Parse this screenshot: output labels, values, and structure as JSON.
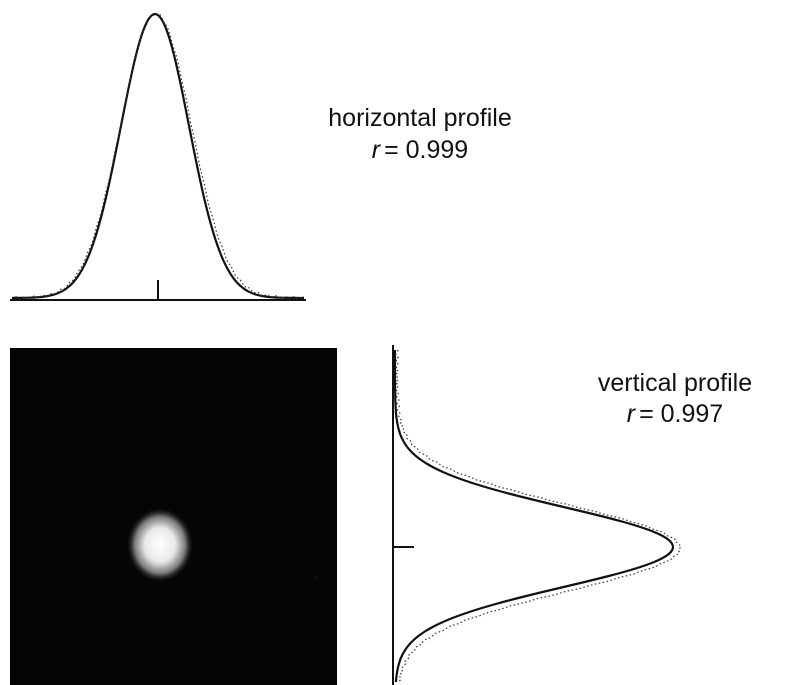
{
  "horizontal_profile": {
    "label": "horizontal profile",
    "r_symbol": "r",
    "r_value": "= 0.999"
  },
  "vertical_profile": {
    "label": "vertical profile",
    "r_symbol": "r",
    "r_value": "= 0.997"
  }
}
